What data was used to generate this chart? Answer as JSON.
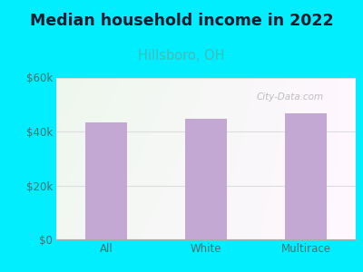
{
  "title": "Median household income in 2022",
  "subtitle": "Hillsboro, OH",
  "categories": [
    "All",
    "White",
    "Multirace"
  ],
  "values": [
    43500,
    44800,
    46800
  ],
  "bar_color": "#c4a8d4",
  "title_fontsize": 12.5,
  "title_color": "#1a1a2e",
  "subtitle_fontsize": 10.5,
  "subtitle_color": "#4ab8b8",
  "tick_color": "#4a7070",
  "background_color": "#00eeff",
  "plot_bg_top_left": "#dff0df",
  "plot_bg_right": "#f5f5f5",
  "watermark": "City-Data.com",
  "ylim": [
    0,
    60000
  ],
  "yticks": [
    0,
    20000,
    40000,
    60000
  ],
  "ytick_labels": [
    "$0",
    "$20k",
    "$40k",
    "$60k"
  ],
  "grid_color": "#dddddd"
}
